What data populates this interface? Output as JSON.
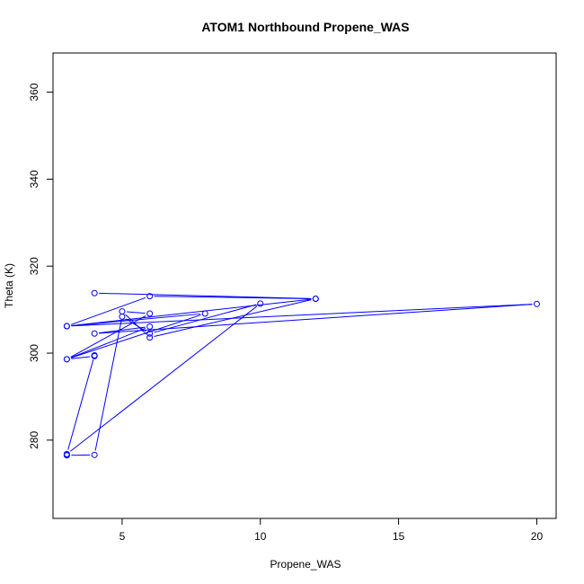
{
  "chart_data": {
    "type": "line",
    "title": "ATOM1 Northbound Propene_WAS",
    "xlabel": "Propene_WAS",
    "ylabel": "Theta (K)",
    "xlim": [
      2.5,
      20.7
    ],
    "ylim": [
      262,
      369
    ],
    "x_ticks": [
      5,
      10,
      15,
      20
    ],
    "y_ticks": [
      280,
      300,
      320,
      340,
      360
    ],
    "grid": false,
    "legend": "none",
    "line_color": "#0000ff",
    "marker": "open-circle",
    "series": [
      {
        "x": [
          4,
          12,
          3,
          6,
          12,
          6,
          5,
          6,
          3,
          8,
          3,
          20,
          4,
          6,
          3,
          4,
          4,
          4,
          3,
          10,
          6,
          5,
          4,
          3,
          3
        ],
        "y": [
          313.8,
          312.5,
          306.2,
          313.1,
          312.5,
          303.6,
          309.6,
          309.1,
          298.6,
          309.1,
          306.2,
          311.3,
          304.5,
          306.1,
          298.6,
          299.3,
          299.4,
          299.5,
          276.8,
          311.4,
          304.5,
          308.4,
          276.6,
          276.5,
          276.6
        ]
      }
    ]
  }
}
